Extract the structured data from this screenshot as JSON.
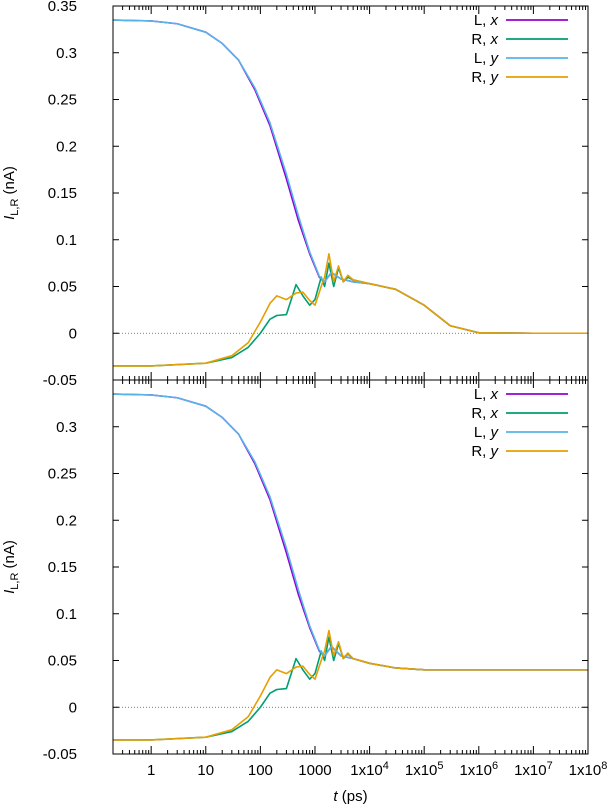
{
  "chart_data": [
    {
      "type": "line",
      "panel": "top",
      "x_scale": "log",
      "xlim": [
        0.2,
        100000000
      ],
      "ylim": [
        -0.05,
        0.35
      ],
      "yticks": [
        "-0.05",
        "0",
        "0.05",
        "0.1",
        "0.15",
        "0.2",
        "0.25",
        "0.3",
        "0.35"
      ],
      "ylabel_main": "I",
      "ylabel_sub": "L,R",
      "ylabel_unit": " (nA)",
      "zero_line": true,
      "legend_position": "top-right",
      "series": [
        {
          "name_prefix": "L, ",
          "name_var": "x",
          "color": "#9400d3",
          "points": [
            [
              0.2,
              0.335
            ],
            [
              1,
              0.334
            ],
            [
              3,
              0.331
            ],
            [
              10,
              0.322
            ],
            [
              20,
              0.31
            ],
            [
              40,
              0.292
            ],
            [
              80,
              0.26
            ],
            [
              150,
              0.222
            ],
            [
              300,
              0.165
            ],
            [
              500,
              0.12
            ],
            [
              800,
              0.085
            ],
            [
              1200,
              0.06
            ],
            [
              1500,
              0.055
            ],
            [
              2000,
              0.065
            ],
            [
              3000,
              0.058
            ],
            [
              5000,
              0.055
            ],
            [
              10000,
              0.053
            ],
            [
              30000,
              0.047
            ],
            [
              100000,
              0.03
            ],
            [
              300000,
              0.008
            ],
            [
              1000000,
              0.0005
            ],
            [
              10000000,
              0.0
            ],
            [
              100000000,
              0.0
            ]
          ]
        },
        {
          "name_prefix": "R, ",
          "name_var": "x",
          "color": "#009e73",
          "points": [
            [
              0.2,
              -0.035
            ],
            [
              1,
              -0.035
            ],
            [
              10,
              -0.032
            ],
            [
              30,
              -0.026
            ],
            [
              60,
              -0.015
            ],
            [
              100,
              0.0
            ],
            [
              150,
              0.015
            ],
            [
              200,
              0.019
            ],
            [
              300,
              0.02
            ],
            [
              450,
              0.052
            ],
            [
              600,
              0.04
            ],
            [
              800,
              0.03
            ],
            [
              1000,
              0.036
            ],
            [
              1300,
              0.06
            ],
            [
              1500,
              0.05
            ],
            [
              1800,
              0.075
            ],
            [
              2200,
              0.05
            ],
            [
              2700,
              0.07
            ],
            [
              3300,
              0.055
            ],
            [
              4000,
              0.06
            ],
            [
              5000,
              0.057
            ],
            [
              10000,
              0.053
            ],
            [
              30000,
              0.047
            ],
            [
              100000,
              0.03
            ],
            [
              300000,
              0.008
            ],
            [
              1000000,
              0.0005
            ],
            [
              10000000,
              0.0
            ],
            [
              100000000,
              0.0
            ]
          ]
        },
        {
          "name_prefix": "L, ",
          "name_var": "y",
          "color": "#56b4e9",
          "points": [
            [
              0.2,
              0.335
            ],
            [
              1,
              0.334
            ],
            [
              3,
              0.331
            ],
            [
              10,
              0.322
            ],
            [
              20,
              0.31
            ],
            [
              40,
              0.292
            ],
            [
              80,
              0.262
            ],
            [
              150,
              0.225
            ],
            [
              300,
              0.17
            ],
            [
              500,
              0.125
            ],
            [
              800,
              0.087
            ],
            [
              1200,
              0.061
            ],
            [
              1500,
              0.055
            ],
            [
              2000,
              0.065
            ],
            [
              3000,
              0.058
            ],
            [
              5000,
              0.055
            ],
            [
              10000,
              0.053
            ],
            [
              30000,
              0.047
            ],
            [
              100000,
              0.03
            ],
            [
              300000,
              0.008
            ],
            [
              1000000,
              0.0005
            ],
            [
              10000000,
              0.0
            ],
            [
              100000000,
              0.0
            ]
          ]
        },
        {
          "name_prefix": "R, ",
          "name_var": "y",
          "color": "#e69f00",
          "points": [
            [
              0.2,
              -0.035
            ],
            [
              1,
              -0.035
            ],
            [
              10,
              -0.032
            ],
            [
              30,
              -0.024
            ],
            [
              60,
              -0.01
            ],
            [
              100,
              0.012
            ],
            [
              150,
              0.032
            ],
            [
              200,
              0.04
            ],
            [
              300,
              0.036
            ],
            [
              450,
              0.043
            ],
            [
              600,
              0.044
            ],
            [
              800,
              0.035
            ],
            [
              1000,
              0.03
            ],
            [
              1300,
              0.05
            ],
            [
              1500,
              0.06
            ],
            [
              1800,
              0.085
            ],
            [
              2200,
              0.055
            ],
            [
              2700,
              0.072
            ],
            [
              3300,
              0.055
            ],
            [
              4000,
              0.062
            ],
            [
              5000,
              0.057
            ],
            [
              10000,
              0.053
            ],
            [
              30000,
              0.047
            ],
            [
              100000,
              0.03
            ],
            [
              300000,
              0.008
            ],
            [
              1000000,
              0.0005
            ],
            [
              10000000,
              0.0
            ],
            [
              100000000,
              0.0
            ]
          ]
        }
      ]
    },
    {
      "type": "line",
      "panel": "bottom",
      "x_scale": "log",
      "xlim": [
        0.2,
        100000000
      ],
      "ylim": [
        -0.05,
        0.35
      ],
      "yticks": [
        "-0.05",
        "0",
        "0.05",
        "0.1",
        "0.15",
        "0.2",
        "0.25",
        "0.3"
      ],
      "ylabel_main": "I",
      "ylabel_sub": "L,R",
      "ylabel_unit": " (nA)",
      "xlabel_main": "t",
      "xlabel_unit": " (ps)",
      "xticks": [
        {
          "value": 1,
          "base": "1",
          "exp": ""
        },
        {
          "value": 10,
          "base": "10",
          "exp": ""
        },
        {
          "value": 100,
          "base": "100",
          "exp": ""
        },
        {
          "value": 1000,
          "base": "1000",
          "exp": ""
        },
        {
          "value": 10000,
          "base": "1x10",
          "exp": "4"
        },
        {
          "value": 100000,
          "base": "1x10",
          "exp": "5"
        },
        {
          "value": 1000000,
          "base": "1x10",
          "exp": "6"
        },
        {
          "value": 10000000,
          "base": "1x10",
          "exp": "7"
        },
        {
          "value": 100000000,
          "base": "1x10",
          "exp": "8"
        }
      ],
      "zero_line": true,
      "legend_position": "top-right",
      "series": [
        {
          "name_prefix": "L, ",
          "name_var": "x",
          "color": "#9400d3",
          "points": [
            [
              0.2,
              0.335
            ],
            [
              1,
              0.334
            ],
            [
              3,
              0.331
            ],
            [
              10,
              0.322
            ],
            [
              20,
              0.31
            ],
            [
              40,
              0.292
            ],
            [
              80,
              0.26
            ],
            [
              150,
              0.222
            ],
            [
              300,
              0.165
            ],
            [
              500,
              0.12
            ],
            [
              800,
              0.085
            ],
            [
              1200,
              0.06
            ],
            [
              1500,
              0.055
            ],
            [
              2000,
              0.065
            ],
            [
              3000,
              0.055
            ],
            [
              5000,
              0.052
            ],
            [
              10000,
              0.047
            ],
            [
              30000,
              0.042
            ],
            [
              100000,
              0.04
            ],
            [
              1000000,
              0.04
            ],
            [
              100000000,
              0.04
            ]
          ]
        },
        {
          "name_prefix": "R, ",
          "name_var": "x",
          "color": "#009e73",
          "points": [
            [
              0.2,
              -0.035
            ],
            [
              1,
              -0.035
            ],
            [
              10,
              -0.032
            ],
            [
              30,
              -0.026
            ],
            [
              60,
              -0.015
            ],
            [
              100,
              0.0
            ],
            [
              150,
              0.015
            ],
            [
              200,
              0.019
            ],
            [
              300,
              0.02
            ],
            [
              450,
              0.052
            ],
            [
              600,
              0.04
            ],
            [
              800,
              0.03
            ],
            [
              1000,
              0.036
            ],
            [
              1300,
              0.06
            ],
            [
              1500,
              0.05
            ],
            [
              1800,
              0.075
            ],
            [
              2200,
              0.05
            ],
            [
              2700,
              0.068
            ],
            [
              3300,
              0.052
            ],
            [
              4000,
              0.057
            ],
            [
              5000,
              0.052
            ],
            [
              10000,
              0.047
            ],
            [
              30000,
              0.042
            ],
            [
              100000,
              0.04
            ],
            [
              1000000,
              0.04
            ],
            [
              100000000,
              0.04
            ]
          ]
        },
        {
          "name_prefix": "L, ",
          "name_var": "y",
          "color": "#56b4e9",
          "points": [
            [
              0.2,
              0.335
            ],
            [
              1,
              0.334
            ],
            [
              3,
              0.331
            ],
            [
              10,
              0.322
            ],
            [
              20,
              0.31
            ],
            [
              40,
              0.292
            ],
            [
              80,
              0.262
            ],
            [
              150,
              0.225
            ],
            [
              300,
              0.17
            ],
            [
              500,
              0.125
            ],
            [
              800,
              0.087
            ],
            [
              1200,
              0.061
            ],
            [
              1500,
              0.055
            ],
            [
              2000,
              0.065
            ],
            [
              3000,
              0.055
            ],
            [
              5000,
              0.052
            ],
            [
              10000,
              0.047
            ],
            [
              30000,
              0.042
            ],
            [
              100000,
              0.04
            ],
            [
              1000000,
              0.04
            ],
            [
              100000000,
              0.04
            ]
          ]
        },
        {
          "name_prefix": "R, ",
          "name_var": "y",
          "color": "#e69f00",
          "points": [
            [
              0.2,
              -0.035
            ],
            [
              1,
              -0.035
            ],
            [
              10,
              -0.032
            ],
            [
              30,
              -0.024
            ],
            [
              60,
              -0.01
            ],
            [
              100,
              0.012
            ],
            [
              150,
              0.032
            ],
            [
              200,
              0.04
            ],
            [
              300,
              0.036
            ],
            [
              450,
              0.043
            ],
            [
              600,
              0.044
            ],
            [
              800,
              0.035
            ],
            [
              1000,
              0.03
            ],
            [
              1300,
              0.05
            ],
            [
              1500,
              0.06
            ],
            [
              1800,
              0.082
            ],
            [
              2200,
              0.055
            ],
            [
              2700,
              0.07
            ],
            [
              3300,
              0.052
            ],
            [
              4000,
              0.058
            ],
            [
              5000,
              0.052
            ],
            [
              10000,
              0.047
            ],
            [
              30000,
              0.042
            ],
            [
              100000,
              0.04
            ],
            [
              1000000,
              0.04
            ],
            [
              100000000,
              0.04
            ]
          ]
        }
      ]
    }
  ]
}
